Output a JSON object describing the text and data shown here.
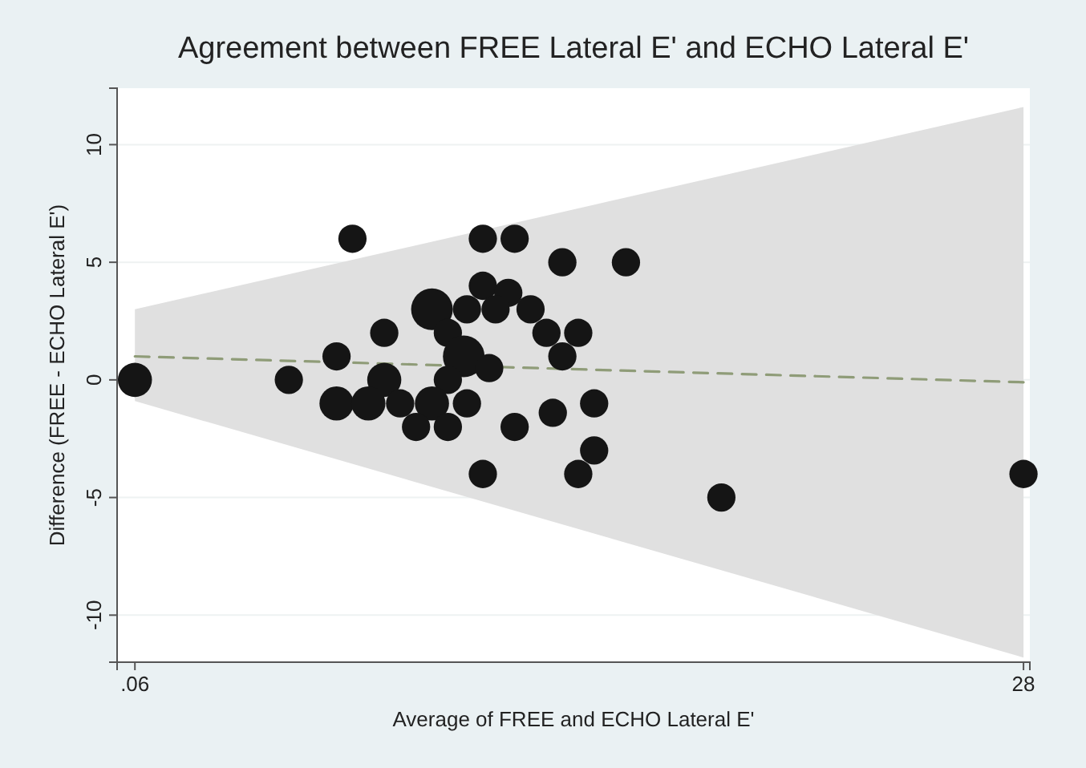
{
  "chart_data": {
    "type": "bubble",
    "title": "Agreement between FREE Lateral E' and ECHO Lateral E'",
    "xlabel": "Average of FREE and ECHO Lateral E'",
    "ylabel": "Difference (FREE - ECHO Lateral E')",
    "xlim": [
      -0.5,
      28.2
    ],
    "xticks": [
      {
        "value": 0.06,
        "label": ".06"
      },
      28
    ],
    "ylim": [
      -12,
      12.4
    ],
    "yticks": [
      -10,
      -5,
      0,
      5,
      10
    ],
    "grid": "y",
    "series": [
      {
        "type": "line",
        "color": "#8f9c78",
        "line_style": "dashed",
        "x": [
          0.06,
          28
        ],
        "values": [
          1,
          -0.1
        ],
        "lower": [
          -0.9,
          -11.8
        ],
        "upper": [
          3,
          11.6
        ]
      },
      {
        "color": "#151515",
        "x": [
          0.06,
          6.9,
          11,
          12,
          13.5,
          11,
          11.8,
          9.4,
          10.5,
          11.4,
          12.5,
          7.9,
          9.9,
          13,
          14,
          6.4,
          10.4,
          13.5,
          11.2,
          4.9,
          7.9,
          9.9,
          6.4,
          7.4,
          8.4,
          9.4,
          10.5,
          14.5,
          8.9,
          9.9,
          12,
          13.2,
          14.5,
          11,
          14,
          15.5,
          18.5,
          28
        ],
        "values": [
          0,
          6,
          6,
          6,
          5,
          4,
          3.7,
          3,
          3,
          3,
          3,
          2,
          2,
          2,
          2,
          1,
          1,
          1,
          0.5,
          0,
          0,
          0,
          -1,
          -1,
          -1,
          -1,
          -1,
          -1,
          -2,
          -2,
          -2,
          -1.4,
          -3,
          -4,
          -4,
          5,
          -5,
          -4
        ],
        "sizes": [
          0.67,
          0.46,
          0.46,
          0.46,
          0.46,
          0.46,
          0.46,
          1,
          0.46,
          0.46,
          0.46,
          0.46,
          0.46,
          0.46,
          0.46,
          0.46,
          1,
          0.46,
          0.46,
          0.46,
          0.67,
          0.46,
          0.67,
          0.67,
          0.46,
          0.67,
          0.46,
          0.46,
          0.46,
          0.46,
          0.46,
          0.46,
          0.46,
          0.46,
          0.46,
          0.46,
          0.46,
          0.46
        ]
      }
    ]
  }
}
